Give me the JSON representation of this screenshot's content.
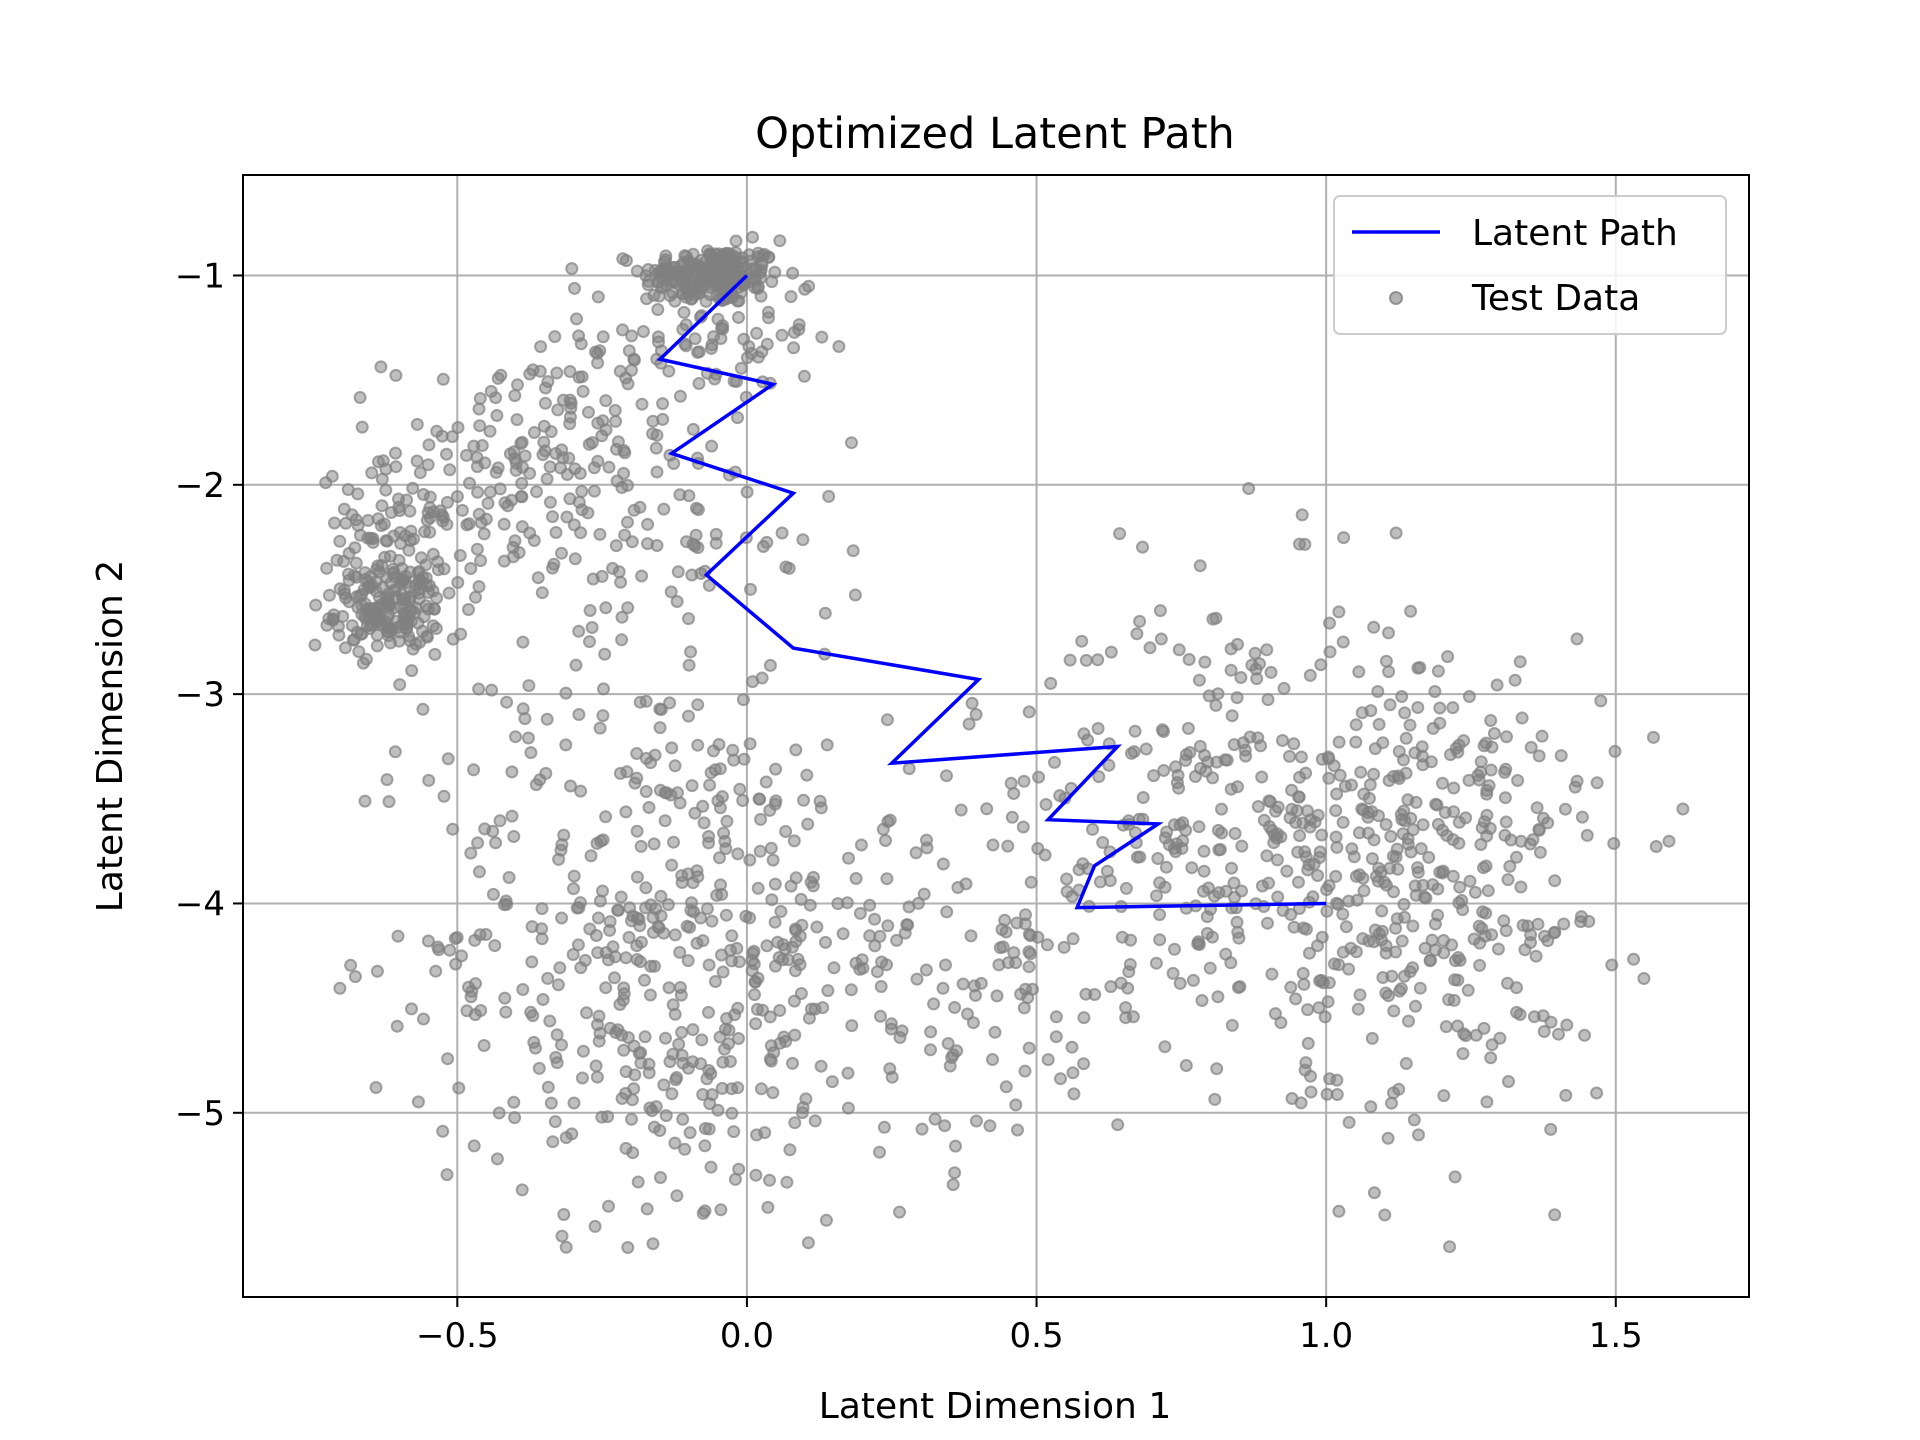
{
  "chart_data": {
    "type": "scatter",
    "title": "Optimized Latent Path",
    "xlabel": "Latent Dimension 1",
    "ylabel": "Latent Dimension 2",
    "xlim": [
      -0.87,
      1.73
    ],
    "ylim": [
      -5.88,
      -0.52
    ],
    "xticks": [
      -0.5,
      0.0,
      0.5,
      1.0,
      1.5
    ],
    "yticks": [
      -1,
      -2,
      -3,
      -4,
      -5
    ],
    "xtick_labels": [
      "−0.5",
      "0.0",
      "0.5",
      "1.0",
      "1.5"
    ],
    "ytick_labels": [
      "−1",
      "−2",
      "−3",
      "−4",
      "−5"
    ],
    "grid": true,
    "legend_position": "top-right",
    "series": [
      {
        "name": "Latent Path",
        "kind": "line",
        "color": "#0000ff",
        "x": [
          0.0,
          -0.15,
          0.045,
          -0.13,
          0.08,
          -0.07,
          0.08,
          0.4,
          0.25,
          0.64,
          0.52,
          0.71,
          0.6,
          0.57,
          1.0
        ],
        "y": [
          -1.0,
          -1.4,
          -1.52,
          -1.85,
          -2.04,
          -2.43,
          -2.78,
          -2.93,
          -3.33,
          -3.25,
          -3.6,
          -3.62,
          -3.82,
          -4.02,
          -4.0
        ]
      },
      {
        "name": "Test Data",
        "kind": "scatter",
        "color": "#808080",
        "clusters": [
          {
            "center": [
              -0.06,
              -1.0
            ],
            "spread": [
              0.06,
              0.07
            ],
            "count": 220
          },
          {
            "center": [
              -0.08,
              -1.3
            ],
            "spread": [
              0.1,
              0.2
            ],
            "count": 90
          },
          {
            "center": [
              -0.62,
              -2.6
            ],
            "spread": [
              0.045,
              0.1
            ],
            "count": 140
          },
          {
            "center": [
              -0.6,
              -2.35
            ],
            "spread": [
              0.07,
              0.22
            ],
            "count": 120
          },
          {
            "center": [
              -0.38,
              -1.9
            ],
            "spread": [
              0.12,
              0.28
            ],
            "count": 160
          },
          {
            "center": [
              -0.15,
              -2.3
            ],
            "spread": [
              0.15,
              0.35
            ],
            "count": 80
          },
          {
            "center": [
              -0.15,
              -4.2
            ],
            "spread": [
              0.2,
              0.7
            ],
            "count": 500
          },
          {
            "center": [
              0.35,
              -4.3
            ],
            "spread": [
              0.2,
              0.5
            ],
            "count": 160
          },
          {
            "center": [
              0.85,
              -3.6
            ],
            "spread": [
              0.18,
              0.55
            ],
            "count": 320
          },
          {
            "center": [
              1.2,
              -3.9
            ],
            "spread": [
              0.15,
              0.6
            ],
            "count": 320
          }
        ]
      }
    ]
  }
}
